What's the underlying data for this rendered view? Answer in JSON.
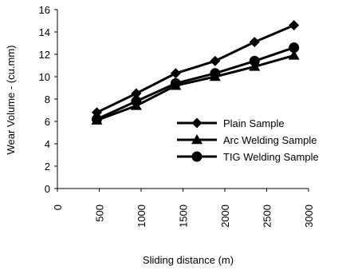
{
  "chart_data": {
    "type": "line",
    "xlabel": "Sliding distance  (m)",
    "ylabel": "Wear Volume - (cu.mm)",
    "xlim": [
      0,
      3000
    ],
    "ylim": [
      0,
      16
    ],
    "xticks": [
      "0",
      "500",
      "1000",
      "1500",
      "2000",
      "2500",
      "3000"
    ],
    "yticks": [
      "0",
      "2",
      "4",
      "6",
      "8",
      "10",
      "12",
      "14",
      "16"
    ],
    "grid": false,
    "legend_position": "right",
    "x": [
      471,
      942,
      1413,
      1884,
      2355,
      2826
    ],
    "series": [
      {
        "name": "Plain Sample",
        "values": [
          6.8,
          8.5,
          10.3,
          11.4,
          13.1,
          14.6
        ],
        "marker": "diamond",
        "color": "#000000"
      },
      {
        "name": "Arc Welding Sample",
        "values": [
          6.1,
          7.4,
          9.2,
          10.0,
          10.9,
          11.9
        ],
        "marker": "triangle",
        "color": "#000000"
      },
      {
        "name": "TIG Welding Sample",
        "values": [
          6.2,
          7.8,
          9.4,
          10.3,
          11.4,
          12.6
        ],
        "marker": "circle",
        "color": "#000000"
      }
    ]
  }
}
